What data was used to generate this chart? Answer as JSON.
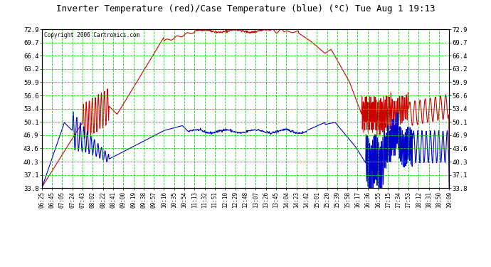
{
  "title": "Inverter Temperature (red)/Case Temperature (blue) (°C) Tue Aug 1 19:13",
  "copyright": "Copyright 2006 Cartronics.com",
  "background_color": "#ffffff",
  "plot_background": "#ffffff",
  "grid_color": "#00dd00",
  "y_ticks": [
    33.8,
    37.1,
    40.3,
    43.6,
    46.9,
    50.1,
    53.4,
    56.6,
    59.9,
    63.2,
    66.4,
    69.7,
    72.9
  ],
  "y_min": 33.8,
  "y_max": 72.9,
  "x_labels": [
    "06:25",
    "06:45",
    "07:05",
    "07:24",
    "07:43",
    "08:02",
    "08:22",
    "08:41",
    "09:00",
    "09:19",
    "09:38",
    "09:57",
    "10:16",
    "10:35",
    "10:54",
    "11:13",
    "11:32",
    "11:51",
    "12:10",
    "12:29",
    "12:48",
    "13:07",
    "13:26",
    "13:45",
    "14:04",
    "14:23",
    "14:42",
    "15:01",
    "15:20",
    "15:39",
    "15:58",
    "16:17",
    "16:36",
    "16:55",
    "17:15",
    "17:34",
    "17:53",
    "18:12",
    "18:31",
    "18:50",
    "19:09"
  ],
  "red_line_color": "#cc0000",
  "blue_line_color": "#0000cc",
  "line_width": 0.8
}
